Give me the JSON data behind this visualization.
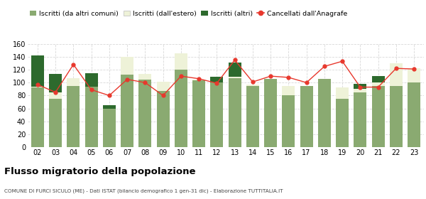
{
  "years": [
    "02",
    "03",
    "04",
    "05",
    "06",
    "07",
    "08",
    "09",
    "10",
    "11",
    "12",
    "13",
    "14",
    "15",
    "16",
    "17",
    "18",
    "19",
    "20",
    "21",
    "22",
    "23"
  ],
  "iscritti_altri_comuni": [
    92,
    75,
    95,
    94,
    60,
    112,
    105,
    87,
    120,
    104,
    100,
    107,
    95,
    106,
    80,
    95,
    106,
    75,
    85,
    95,
    95,
    100
  ],
  "iscritti_estero": [
    2,
    10,
    12,
    0,
    0,
    28,
    8,
    14,
    25,
    1,
    0,
    2,
    2,
    0,
    15,
    0,
    0,
    18,
    5,
    5,
    35,
    22
  ],
  "iscritti_altri": [
    48,
    28,
    0,
    20,
    5,
    0,
    0,
    0,
    0,
    0,
    9,
    22,
    0,
    0,
    0,
    0,
    0,
    0,
    8,
    10,
    0,
    0
  ],
  "cancellati": [
    97,
    85,
    128,
    89,
    80,
    105,
    100,
    80,
    110,
    106,
    99,
    135,
    101,
    110,
    108,
    100,
    125,
    133,
    93,
    93,
    122,
    121
  ],
  "color_altri_comuni": "#8aaa71",
  "color_estero": "#eef2d8",
  "color_altri": "#2d6a2d",
  "color_cancellati": "#e8382d",
  "title": "Flusso migratorio della popolazione",
  "subtitle": "COMUNE DI FURCI SICULO (ME) - Dati ISTAT (bilancio demografico 1 gen-31 dic) - Elaborazione TUTTITALIA.IT",
  "legend_labels": [
    "Iscritti (da altri comuni)",
    "Iscritti (dall'estero)",
    "Iscritti (altri)",
    "Cancellati dall'Anagrafe"
  ],
  "ylim": [
    0,
    160
  ],
  "yticks": [
    0,
    20,
    40,
    60,
    80,
    100,
    120,
    140,
    160
  ],
  "background_color": "#ffffff",
  "grid_color": "#d8d8d8"
}
